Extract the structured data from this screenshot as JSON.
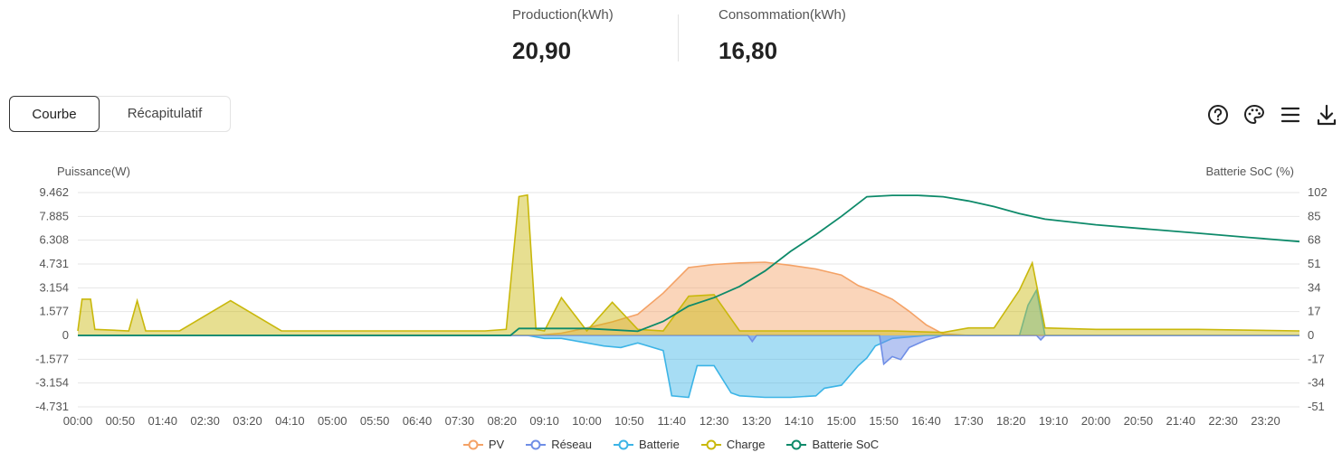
{
  "stats": {
    "production": {
      "label": "Production(kWh)",
      "value": "20,90"
    },
    "consumption": {
      "label": "Consommation(kWh)",
      "value": "16,80"
    }
  },
  "tabs": [
    {
      "label": "Courbe",
      "active": true
    },
    {
      "label": "Récapitulatif",
      "active": false
    }
  ],
  "toolbar": {
    "icons": [
      "help-icon",
      "palette-icon",
      "menu-icon",
      "download-icon"
    ]
  },
  "colors": {
    "PV": "#f4a266",
    "Réseau": "#6f8ee6",
    "Batterie": "#3cb4e6",
    "Charge": "#c9b80c",
    "Batterie SoC": "#0e8a6a",
    "grid": "#e6e6e6"
  },
  "chart_data": {
    "type": "area",
    "ylabel_left": "Puissance(W)",
    "ylabel_right": "Batterie SoC (%)",
    "y_ticks_left": [
      "9.462",
      "7.885",
      "6.308",
      "4.731",
      "3.154",
      "1.577",
      "0",
      "-1.577",
      "-3.154",
      "-4.731"
    ],
    "y_ticks_right": [
      "102",
      "85",
      "68",
      "51",
      "34",
      "17",
      "0",
      "-17",
      "-34",
      "-51"
    ],
    "ylim_left": [
      -4731,
      9462
    ],
    "ylim_right": [
      -51,
      102
    ],
    "x_ticks": [
      "00:00",
      "00:50",
      "01:40",
      "02:30",
      "03:20",
      "04:10",
      "05:00",
      "05:50",
      "06:40",
      "07:30",
      "08:20",
      "09:10",
      "10:00",
      "10:50",
      "11:40",
      "12:30",
      "13:20",
      "14:10",
      "15:00",
      "15:50",
      "16:40",
      "17:30",
      "18:20",
      "19:10",
      "20:00",
      "20:50",
      "21:40",
      "22:30",
      "23:20"
    ],
    "xlim_hours": [
      0,
      24
    ],
    "grid": true,
    "legend_position": "bottom",
    "legend": [
      "PV",
      "Réseau",
      "Batterie",
      "Charge",
      "Batterie SoC"
    ],
    "series": [
      {
        "name": "PV",
        "x": [
          "00:00",
          "09:00",
          "09:30",
          "10:00",
          "10:30",
          "11:00",
          "11:30",
          "12:00",
          "12:30",
          "13:00",
          "13:30",
          "14:00",
          "14:30",
          "15:00",
          "15:20",
          "15:40",
          "16:00",
          "16:20",
          "16:40",
          "17:00",
          "17:30",
          "24:00"
        ],
        "values": [
          0,
          0,
          150,
          500,
          900,
          1400,
          2800,
          4500,
          4700,
          4800,
          4850,
          4650,
          4400,
          4000,
          3300,
          2900,
          2400,
          1600,
          700,
          100,
          0,
          0
        ]
      },
      {
        "name": "Réseau",
        "x": [
          "00:00",
          "13:10",
          "13:15",
          "13:20",
          "15:45",
          "15:50",
          "16:00",
          "16:10",
          "16:20",
          "16:40",
          "17:00",
          "18:50",
          "18:55",
          "19:00",
          "24:00"
        ],
        "values": [
          0,
          0,
          -400,
          0,
          0,
          -1900,
          -1400,
          -1600,
          -800,
          -300,
          0,
          0,
          -300,
          0,
          0
        ]
      },
      {
        "name": "Batterie",
        "x": [
          "00:00",
          "08:50",
          "09:10",
          "09:30",
          "10:00",
          "10:20",
          "10:40",
          "11:00",
          "11:30",
          "11:40",
          "12:00",
          "12:10",
          "12:30",
          "12:50",
          "13:00",
          "13:30",
          "14:00",
          "14:30",
          "14:40",
          "15:00",
          "15:20",
          "15:30",
          "15:40",
          "16:00",
          "16:20",
          "16:40",
          "18:30",
          "18:40",
          "18:50",
          "19:00",
          "24:00"
        ],
        "values": [
          0,
          0,
          -200,
          -200,
          -500,
          -700,
          -800,
          -500,
          -1000,
          -4000,
          -4100,
          -2000,
          -2000,
          -3800,
          -4000,
          -4100,
          -4100,
          -4000,
          -3500,
          -3300,
          -2000,
          -1500,
          -700,
          -200,
          -100,
          0,
          0,
          2000,
          3000,
          0,
          0
        ]
      },
      {
        "name": "Charge",
        "x": [
          "00:00",
          "00:05",
          "00:15",
          "00:20",
          "01:00",
          "01:10",
          "01:20",
          "02:00",
          "03:00",
          "04:00",
          "05:00",
          "06:00",
          "07:00",
          "08:00",
          "08:25",
          "08:40",
          "08:50",
          "09:00",
          "09:10",
          "09:30",
          "10:00",
          "10:30",
          "11:00",
          "11:30",
          "12:00",
          "12:30",
          "13:00",
          "13:30",
          "14:00",
          "15:00",
          "16:00",
          "17:00",
          "17:30",
          "18:00",
          "18:30",
          "18:45",
          "19:00",
          "20:00",
          "22:00",
          "24:00"
        ],
        "values": [
          300,
          2400,
          2400,
          400,
          300,
          2300,
          300,
          300,
          2300,
          300,
          300,
          300,
          300,
          300,
          400,
          9200,
          9300,
          400,
          300,
          2500,
          300,
          2200,
          400,
          300,
          2600,
          2700,
          300,
          300,
          300,
          300,
          300,
          200,
          500,
          500,
          3000,
          4800,
          500,
          400,
          400,
          300
        ]
      },
      {
        "name": "Batterie SoC",
        "x": [
          "00:00",
          "08:30",
          "08:40",
          "09:30",
          "10:00",
          "10:30",
          "11:00",
          "11:30",
          "12:00",
          "12:30",
          "13:00",
          "13:30",
          "14:00",
          "14:30",
          "15:00",
          "15:30",
          "16:00",
          "16:30",
          "17:00",
          "17:30",
          "18:00",
          "18:30",
          "19:00",
          "19:30",
          "20:00",
          "21:00",
          "22:00",
          "23:00",
          "24:00"
        ],
        "values": [
          0,
          0,
          5,
          5,
          5,
          4,
          3,
          10,
          21,
          27,
          35,
          46,
          60,
          72,
          85,
          99,
          100,
          100,
          99,
          96,
          92,
          87,
          83,
          81,
          79,
          76,
          73,
          70,
          67
        ]
      }
    ]
  }
}
